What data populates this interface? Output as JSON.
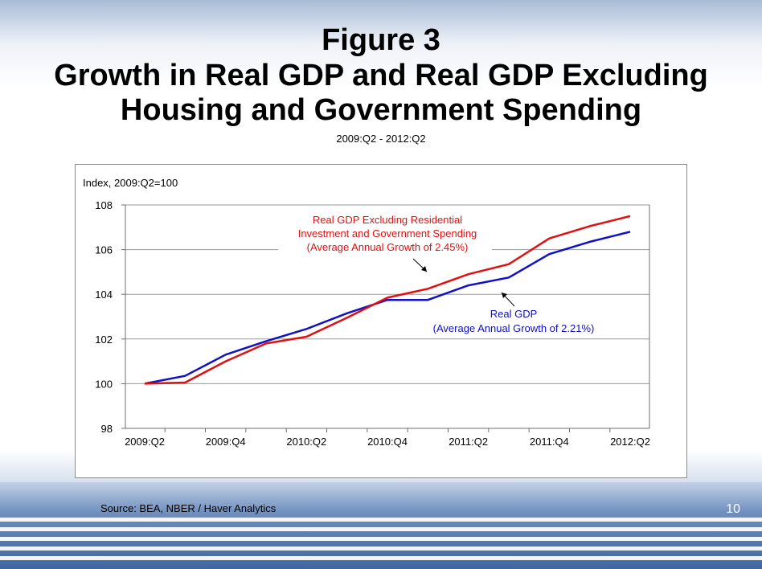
{
  "slide": {
    "title_line1": "Figure 3",
    "title_line2": "Growth in Real GDP and Real GDP Excluding",
    "title_line3": "Housing and Government Spending",
    "subtitle": "2009:Q2 - 2012:Q2",
    "source": "Source:  BEA, NBER / Haver Analytics",
    "page_number": "10"
  },
  "chart_data": {
    "type": "line",
    "ylabel": "Index, 2009:Q2=100",
    "ylim": [
      98,
      108
    ],
    "yticks": [
      98,
      100,
      102,
      104,
      106,
      108
    ],
    "x": [
      "2009:Q2",
      "2009:Q3",
      "2009:Q4",
      "2010:Q1",
      "2010:Q2",
      "2010:Q3",
      "2010:Q4",
      "2011:Q1",
      "2011:Q2",
      "2011:Q3",
      "2011:Q4",
      "2012:Q1",
      "2012:Q2"
    ],
    "xtick_labels": [
      "2009:Q2",
      "2009:Q4",
      "2010:Q2",
      "2010:Q4",
      "2011:Q2",
      "2011:Q4",
      "2012:Q2"
    ],
    "grid": "horizontal",
    "series": [
      {
        "name": "Real GDP",
        "color": "#1010c8",
        "values": [
          100.0,
          100.35,
          101.3,
          101.9,
          102.45,
          103.15,
          103.75,
          103.75,
          104.4,
          104.75,
          105.8,
          106.35,
          106.8
        ],
        "label_lines": [
          "Real GDP",
          "(Average Annual Growth of 2.21%)"
        ]
      },
      {
        "name": "Real GDP Excluding Residential Investment and Government Spending",
        "color": "#e01010",
        "values": [
          100.0,
          100.05,
          101.0,
          101.8,
          102.1,
          102.95,
          103.85,
          104.25,
          104.9,
          105.35,
          106.5,
          107.05,
          107.5
        ],
        "label_lines": [
          "Real GDP Excluding Residential",
          "Investment and Government Spending",
          "(Average Annual Growth of 2.45%)"
        ]
      }
    ]
  }
}
